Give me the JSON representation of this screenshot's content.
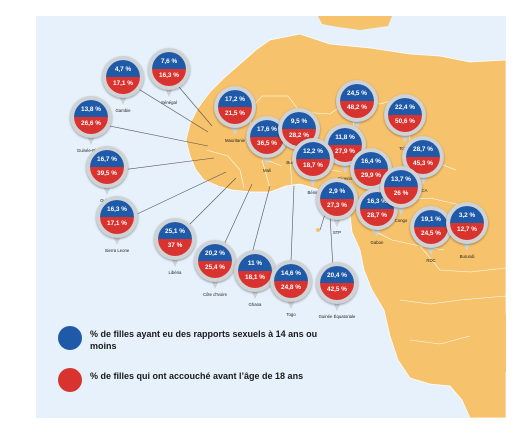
{
  "colors": {
    "ocean": "#e6f1fb",
    "land": "#f6c26b",
    "border": "#ffffff",
    "series1": "#1f5aa8",
    "series2": "#d8332f"
  },
  "legend": [
    {
      "color": "#1f5aa8",
      "text": "% de filles ayant eu des rapports sexuels à 14 ans ou moins"
    },
    {
      "color": "#d8332f",
      "text": "% de filles qui ont accouché avant l’âge de 18 ans"
    }
  ],
  "markers": [
    {
      "country": "Gambie",
      "v1": "4,7 %",
      "v2": "17,1 %"
    },
    {
      "country": "Sénégal",
      "v1": "7,6 %",
      "v2": "16,3 %"
    },
    {
      "country": "Guinée-Bissau",
      "v1": "13,8 %",
      "v2": "26,6 %"
    },
    {
      "country": "Guinée",
      "v1": "16,7 %",
      "v2": "39,5 %"
    },
    {
      "country": "Mauritanie",
      "v1": "17,2 %",
      "v2": "21,5 %"
    },
    {
      "country": "Mali",
      "v1": "17,6 %",
      "v2": "36,5 %"
    },
    {
      "country": "Burkina Faso",
      "v1": "9,5 %",
      "v2": "28,2 %"
    },
    {
      "country": "Niger",
      "v1": "24,5 %",
      "v2": "48,2 %"
    },
    {
      "country": "Tchad",
      "v1": "22,4 %",
      "v2": "50,6 %"
    },
    {
      "country": "Nigeria",
      "v1": "11,8 %",
      "v2": "27,9 %"
    },
    {
      "country": "Bénin",
      "v1": "12,2 %",
      "v2": "18,7 %"
    },
    {
      "country": "Cameroun",
      "v1": "16,4 %",
      "v2": "29,9 %"
    },
    {
      "country": "RCA",
      "v1": "28,7 %",
      "v2": "45,3 %"
    },
    {
      "country": "Sierra Leone",
      "v1": "16,3 %",
      "v2": "17,1 %"
    },
    {
      "country": "Libéria",
      "v1": "25,1 %",
      "v2": "37 %"
    },
    {
      "country": "Côte d’Ivoire",
      "v1": "20,2 %",
      "v2": "25,4 %"
    },
    {
      "country": "Ghana",
      "v1": "11 %",
      "v2": "18,1 %"
    },
    {
      "country": "Togo",
      "v1": "14,6 %",
      "v2": "24,8 %"
    },
    {
      "country": "STP",
      "v1": "2,9 %",
      "v2": "27,3 %"
    },
    {
      "country": "Gabon",
      "v1": "16,3 %",
      "v2": "28,7 %"
    },
    {
      "country": "Congo",
      "v1": "13,7 %",
      "v2": "26 %"
    },
    {
      "country": "Guinée Équatoriale",
      "v1": "20,4 %",
      "v2": "42,5 %"
    },
    {
      "country": "RDC",
      "v1": "19,1 %",
      "v2": "24,5 %"
    },
    {
      "country": "Burundi",
      "v1": "3,2 %",
      "v2": "12,7 %"
    }
  ]
}
